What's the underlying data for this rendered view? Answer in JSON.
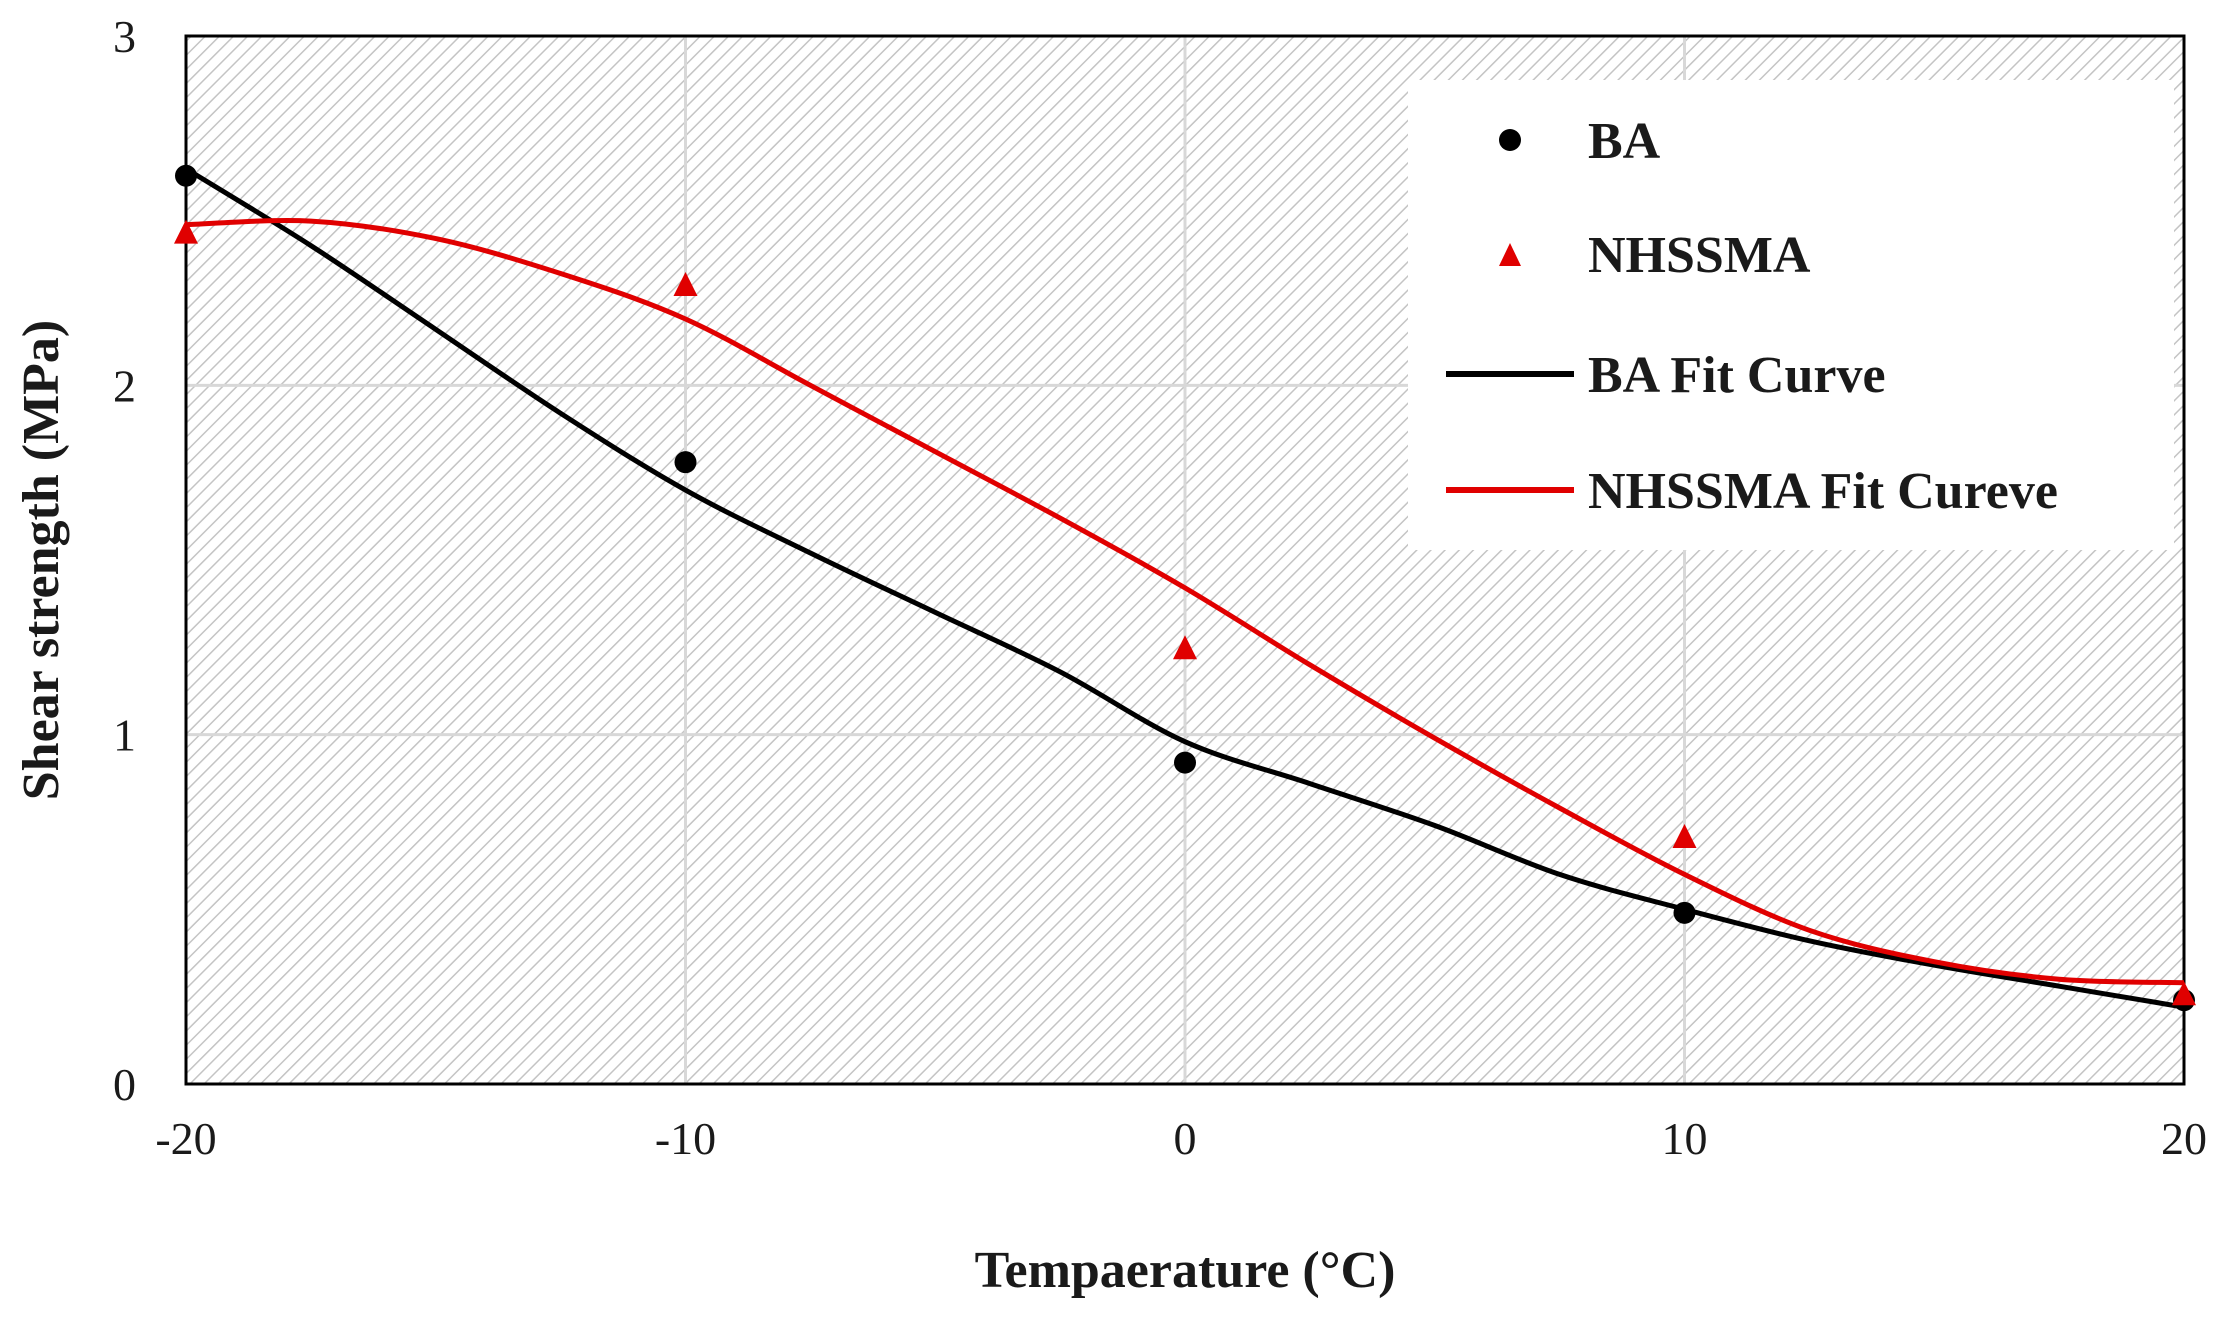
{
  "chart_data": {
    "type": "scatter",
    "title": "",
    "xlabel": "Tempaerature (°C)",
    "ylabel": "Shear strength (MPa)",
    "xlim": [
      -20,
      20
    ],
    "ylim": [
      0,
      3
    ],
    "x_ticks": [
      "-20",
      "-10",
      "0",
      "10",
      "20"
    ],
    "y_ticks": [
      "0",
      "1",
      "2",
      "3"
    ],
    "grid": true,
    "legend_position": "top-right",
    "series": [
      {
        "name": "BA",
        "kind": "points",
        "marker": "circle",
        "color": "#000000",
        "x": [
          -20,
          -10,
          0,
          10,
          20
        ],
        "y": [
          2.6,
          1.78,
          0.92,
          0.49,
          0.24
        ]
      },
      {
        "name": "NHSSMA",
        "kind": "points",
        "marker": "triangle",
        "color": "#e00000",
        "x": [
          -20,
          -10,
          0,
          10,
          20
        ],
        "y": [
          2.44,
          2.29,
          1.25,
          0.71,
          0.26
        ]
      },
      {
        "name": "BA Fit Curve",
        "kind": "line",
        "color": "#000000",
        "x": [
          -20,
          -17.5,
          -15,
          -12.5,
          -10,
          -7.5,
          -5,
          -2.5,
          0,
          2.5,
          5,
          7.5,
          10,
          12.5,
          15,
          17.5,
          20
        ],
        "y": [
          2.62,
          2.4,
          2.16,
          1.92,
          1.7,
          1.52,
          1.35,
          1.18,
          0.98,
          0.86,
          0.74,
          0.6,
          0.5,
          0.41,
          0.34,
          0.28,
          0.22
        ]
      },
      {
        "name": "NHSSMA Fit Cureve",
        "kind": "line",
        "color": "#e00000",
        "x": [
          -20,
          -17.5,
          -15,
          -12.5,
          -10,
          -7.5,
          -5,
          -2.5,
          0,
          2.5,
          5,
          7.5,
          10,
          12.5,
          15,
          17.5,
          20
        ],
        "y": [
          2.46,
          2.47,
          2.42,
          2.32,
          2.19,
          2.0,
          1.81,
          1.62,
          1.42,
          1.2,
          0.99,
          0.79,
          0.6,
          0.44,
          0.35,
          0.3,
          0.29
        ]
      }
    ]
  }
}
